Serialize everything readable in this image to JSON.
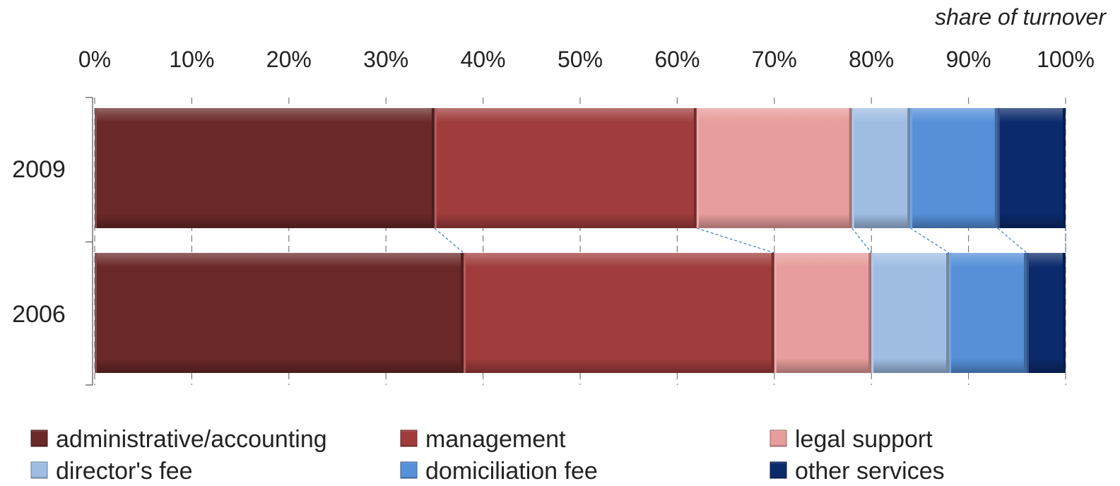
{
  "chart_data": {
    "type": "bar",
    "orientation": "horizontal",
    "stacked": "percent",
    "unit_label": "share of turnover",
    "categories": [
      "2009",
      "2006"
    ],
    "xlim": [
      0,
      100
    ],
    "x_ticks": [
      "0%",
      "10%",
      "20%",
      "30%",
      "40%",
      "50%",
      "60%",
      "70%",
      "80%",
      "90%",
      "100%"
    ],
    "grid": true,
    "series_lines": true,
    "legend_position": "bottom",
    "series": [
      {
        "name": "administrative/accounting",
        "values": [
          35,
          38
        ],
        "color": "#6b2828"
      },
      {
        "name": "management",
        "values": [
          27,
          32
        ],
        "color": "#a03c3c"
      },
      {
        "name": "legal support",
        "values": [
          16,
          10
        ],
        "color": "#e69d9b"
      },
      {
        "name": "director's fee",
        "values": [
          6,
          8
        ],
        "color": "#9fbde3"
      },
      {
        "name": "domiciliation fee",
        "values": [
          9,
          8
        ],
        "color": "#5590d9"
      },
      {
        "name": "other services",
        "values": [
          7,
          4
        ],
        "color": "#0b2a6b"
      }
    ]
  }
}
